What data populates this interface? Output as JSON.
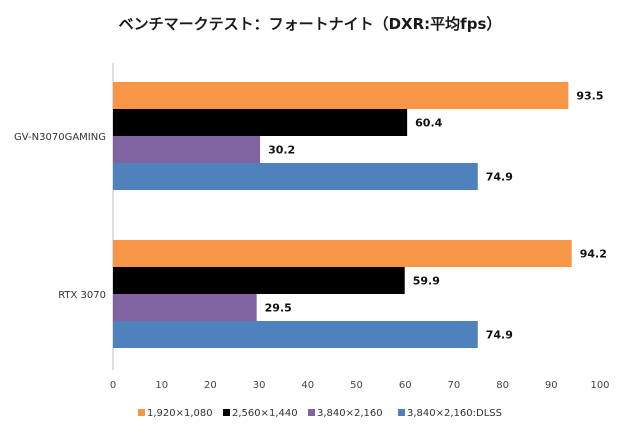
{
  "chart_data": {
    "type": "bar",
    "orientation": "horizontal",
    "title": "ベンチマークテスト：フォートナイト（DXR:平均fps）",
    "categories": [
      "GV-N3070GAMING",
      "RTX 3070"
    ],
    "series": [
      {
        "name": "1,920×1,080",
        "color": "#f79646",
        "values": [
          93.5,
          94.2
        ],
        "labels": [
          "93.5",
          "94.2"
        ]
      },
      {
        "name": "2,560×1,440",
        "color": "#000000",
        "values": [
          60.4,
          59.9
        ],
        "labels": [
          "60.4",
          "59.9"
        ]
      },
      {
        "name": "3,840×2,160",
        "color": "#8064a2",
        "values": [
          30.2,
          29.5
        ],
        "labels": [
          "30.2",
          "29.5"
        ]
      },
      {
        "name": "3,840×2,160:DLSS",
        "color": "#4f81bd",
        "values": [
          74.9,
          74.9
        ],
        "labels": [
          "74.9",
          "74.9"
        ]
      }
    ],
    "xlim": [
      0,
      100
    ],
    "xticks": [
      "0",
      "10",
      "20",
      "30",
      "40",
      "50",
      "60",
      "70",
      "80",
      "90",
      "100"
    ],
    "xlabel": "",
    "ylabel": "",
    "grid": false,
    "legend_position": "bottom"
  }
}
